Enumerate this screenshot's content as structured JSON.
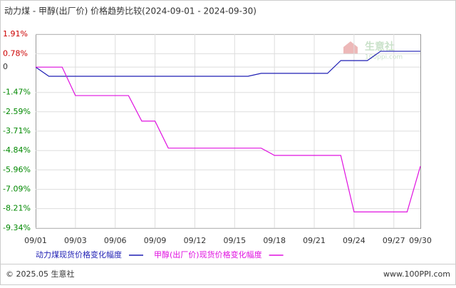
{
  "chart_data": {
    "type": "line",
    "title": "动力煤 - 甲醇(出厂价) 价格趋势比较(2024-09-01 - 2024-09-30)",
    "categories": [
      "09/01",
      null,
      null,
      "09/03",
      null,
      null,
      "09/06",
      null,
      null,
      "09/09",
      null,
      null,
      "09/12",
      null,
      null,
      "09/15",
      null,
      null,
      "09/18",
      null,
      null,
      "09/21",
      null,
      null,
      "09/24",
      null,
      null,
      "09/27",
      null,
      "09/30"
    ],
    "series": [
      {
        "name": "动力煤现货价格变化幅度",
        "color": "#1f1fb4",
        "values": [
          0,
          -0.53,
          -0.53,
          -0.53,
          -0.53,
          -0.53,
          -0.53,
          -0.53,
          -0.53,
          -0.53,
          -0.53,
          -0.53,
          -0.53,
          -0.53,
          -0.53,
          -0.53,
          -0.53,
          -0.36,
          -0.36,
          -0.36,
          -0.36,
          -0.36,
          -0.36,
          0.38,
          0.38,
          0.38,
          0.92,
          0.92,
          0.92,
          0.92
        ]
      },
      {
        "name": "甲醇(出厂价)现货价格变化幅度",
        "color": "#e010e0",
        "values": [
          0,
          0,
          0,
          -1.65,
          -1.65,
          -1.65,
          -1.65,
          -1.65,
          -3.13,
          -3.13,
          -4.7,
          -4.7,
          -4.7,
          -4.7,
          -4.7,
          -4.7,
          -4.7,
          -4.7,
          -5.12,
          -5.12,
          -5.12,
          -5.12,
          -5.12,
          -5.12,
          -8.4,
          -8.4,
          -8.4,
          -8.4,
          -8.4,
          -5.75
        ]
      }
    ],
    "ylim": [
      -9.34,
      1.91
    ],
    "yticks": [
      {
        "value": 1.91,
        "label": "1.91%"
      },
      {
        "value": 0.78,
        "label": "0.78%"
      },
      0,
      {
        "value": -1.47,
        "label": "-1.47%"
      },
      {
        "value": -2.59,
        "label": "-2.59%"
      },
      {
        "value": -3.71,
        "label": "-3.71%"
      },
      {
        "value": -4.84,
        "label": "-4.84%"
      },
      {
        "value": -5.96,
        "label": "-5.96%"
      },
      {
        "value": -7.09,
        "label": "-7.09%"
      },
      {
        "value": -8.21,
        "label": "-8.21%"
      },
      {
        "value": -9.34,
        "label": "-9.34%"
      }
    ],
    "grid": true,
    "watermark": {
      "name": "生意社",
      "site": "100ppi.com"
    }
  },
  "footer": {
    "left": "© 2025.05 生意社",
    "right": "www.100PPI.com"
  }
}
